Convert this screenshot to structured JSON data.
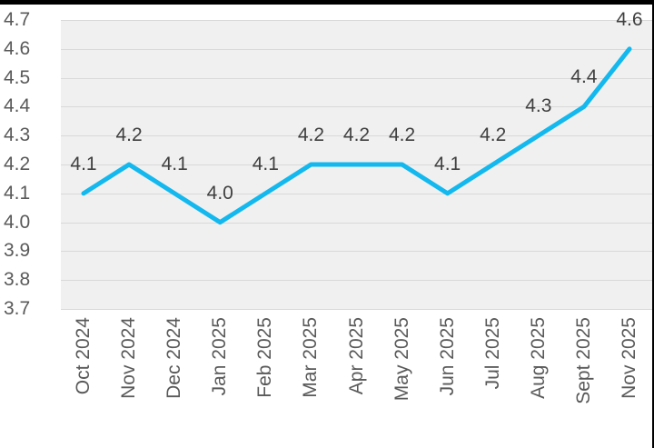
{
  "chart_data": {
    "type": "line",
    "title": "",
    "xlabel": "",
    "ylabel": "",
    "categories": [
      "Oct 2024",
      "Nov 2024",
      "Dec 2024",
      "Jan 2025",
      "Feb 2025",
      "Mar 2025",
      "Apr 2025",
      "May 2025",
      "Jun 2025",
      "Jul 2025",
      "Aug 2025",
      "Sept 2025",
      "Nov 2025"
    ],
    "values": [
      4.1,
      4.2,
      4.1,
      4.0,
      4.1,
      4.2,
      4.2,
      4.2,
      4.1,
      4.2,
      4.3,
      4.4,
      4.6
    ],
    "data_labels": [
      "4.1",
      "4.2",
      "4.1",
      "4.0",
      "4.1",
      "4.2",
      "4.2",
      "4.2",
      "4.1",
      "4.2",
      "4.3",
      "4.4",
      "4.6"
    ],
    "yticks": [
      "4.7",
      "4.6",
      "4.5",
      "4.4",
      "4.3",
      "4.2",
      "4.1",
      "4.0",
      "3.9",
      "3.8",
      "3.7"
    ],
    "ylim": [
      3.7,
      4.7
    ],
    "grid": true,
    "legend": "none",
    "colors": {
      "line": "#12b8ee",
      "plot_background": "#f0f0f0",
      "gridline": "#d9d9d9",
      "axis_label": "#595959",
      "data_label": "#404040",
      "window_edge": "#000000"
    }
  }
}
